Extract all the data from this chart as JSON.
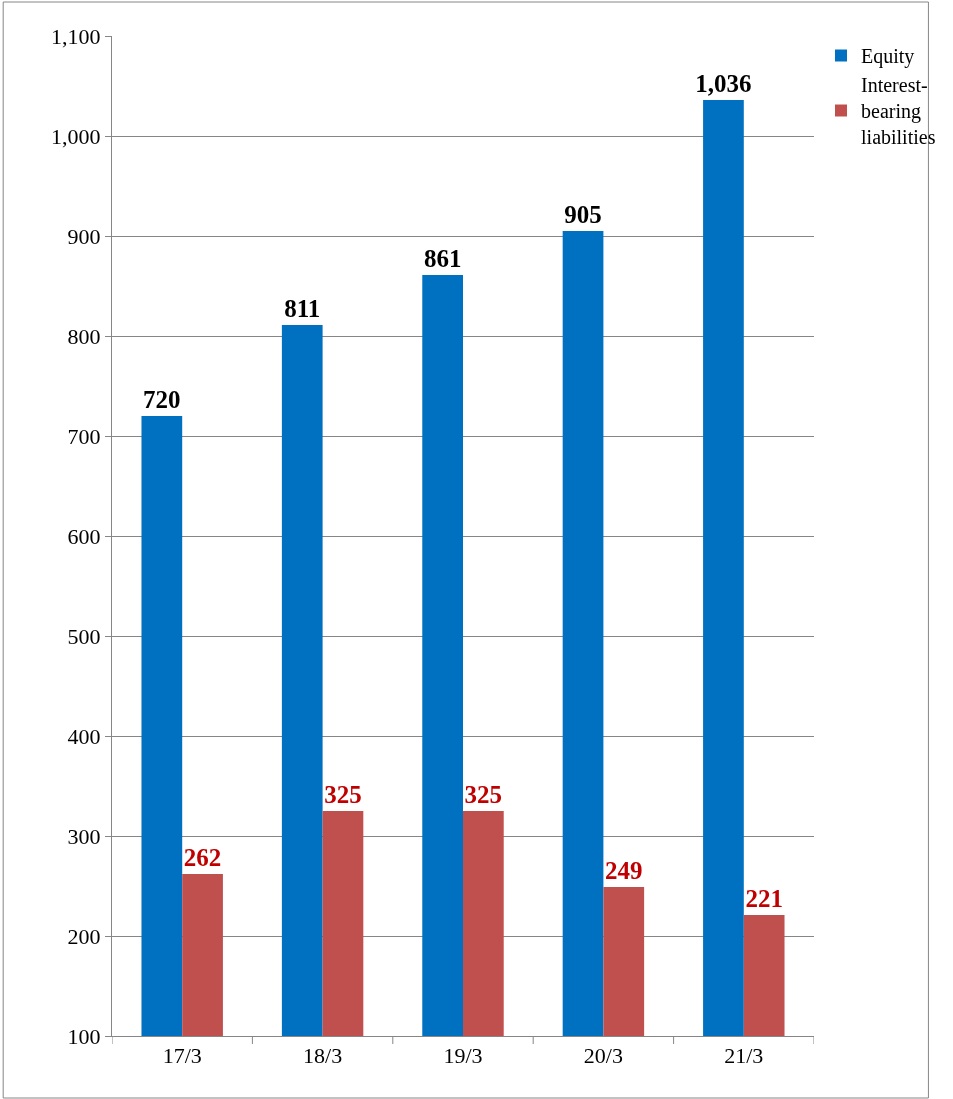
{
  "chart_data": {
    "type": "bar",
    "categories": [
      "17/3",
      "18/3",
      "19/3",
      "20/3",
      "21/3"
    ],
    "series": [
      {
        "name": "Equity",
        "color": "#0070c0",
        "values": [
          720,
          811,
          861,
          905,
          1036
        ],
        "value_labels": [
          "720",
          "811",
          "861",
          "905",
          "1,036"
        ]
      },
      {
        "name": "Interest-bearing liabilities",
        "color": "#c0504d",
        "values": [
          262,
          325,
          325,
          249,
          221
        ],
        "value_labels": [
          "262",
          "325",
          "325",
          "249",
          "221"
        ]
      }
    ],
    "ylim": [
      100,
      1100
    ],
    "yticks": [
      {
        "value": 100,
        "label": "100"
      },
      {
        "value": 200,
        "label": "200"
      },
      {
        "value": 300,
        "label": "300"
      },
      {
        "value": 400,
        "label": "400"
      },
      {
        "value": 500,
        "label": "500"
      },
      {
        "value": 600,
        "label": "600"
      },
      {
        "value": 700,
        "label": "700"
      },
      {
        "value": 800,
        "label": "800"
      },
      {
        "value": 900,
        "label": "900"
      },
      {
        "value": 1000,
        "label": "1,000"
      },
      {
        "value": 1100,
        "label": "1,100"
      }
    ],
    "grid": "y",
    "legend": "top right"
  }
}
